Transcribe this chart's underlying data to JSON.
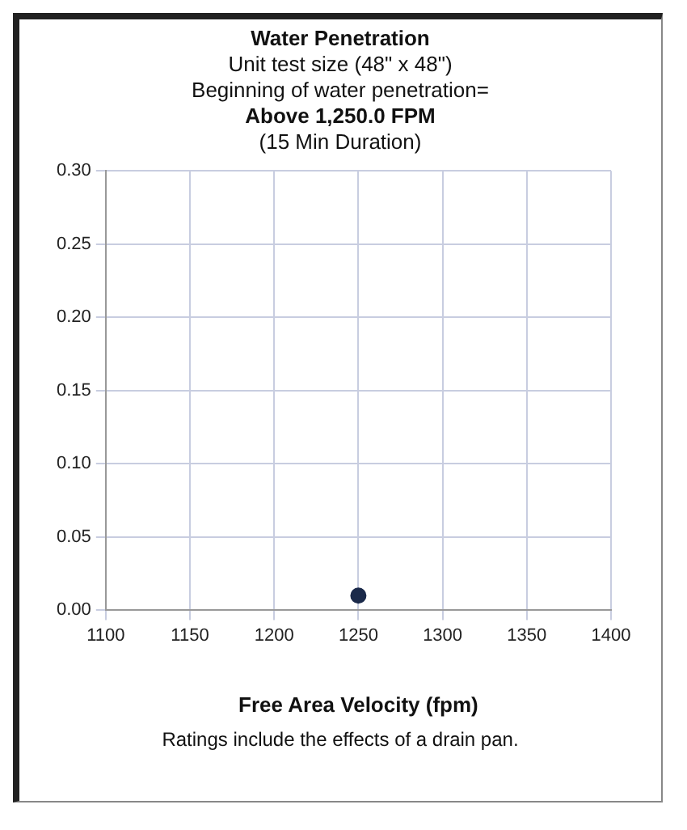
{
  "chart_data": {
    "type": "scatter",
    "title": "Water Penetration",
    "subtitle": "Unit test size (48\" x 48\")",
    "annotations": [
      "Beginning of water penetration=",
      "Above 1,250.0 FPM",
      "(15 Min Duration)",
      "Ratings include the effects of a drain pan."
    ],
    "xlabel": "Free Area Velocity (fpm)",
    "series": [
      {
        "color": "#1b2a4a",
        "x": [
          1250
        ],
        "values": [
          0.01
        ]
      }
    ],
    "xlim": [
      1100,
      1400
    ],
    "xticks": [
      1100,
      1150,
      1200,
      1250,
      1300,
      1350,
      1400
    ],
    "ylim": [
      0,
      0.3
    ],
    "yticks": [
      {
        "value": 0,
        "label": "0.00"
      },
      {
        "value": 0.05,
        "label": "0.05"
      },
      {
        "value": 0.1,
        "label": "0.10"
      },
      {
        "value": 0.15,
        "label": "0.15"
      },
      {
        "value": 0.2,
        "label": "0.20"
      },
      {
        "value": 0.25,
        "label": "0.25"
      },
      {
        "value": 0.3,
        "label": "0.30"
      }
    ],
    "grid": true,
    "legend": false,
    "marker": "circle"
  }
}
